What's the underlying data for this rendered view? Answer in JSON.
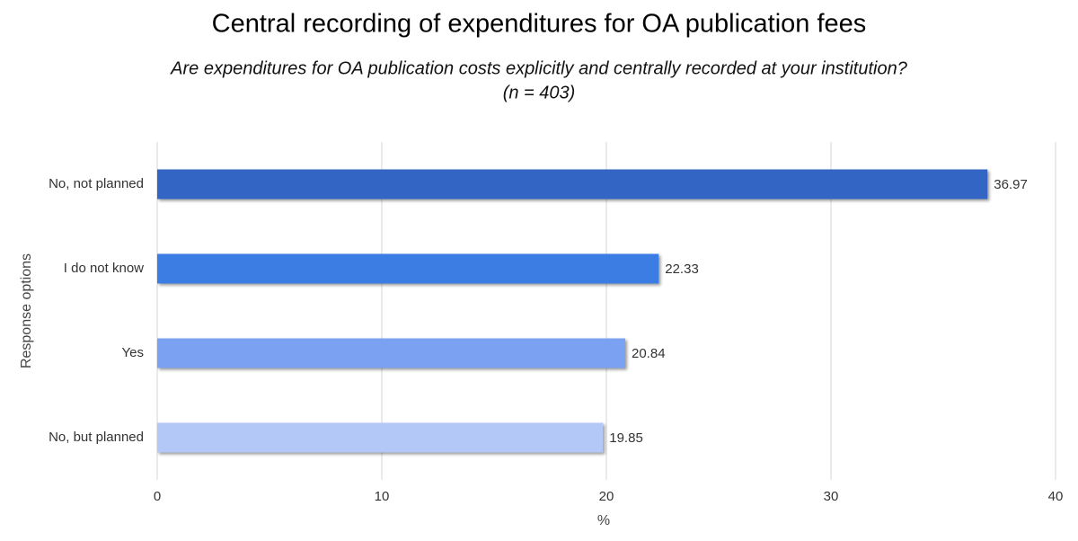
{
  "chart_data": {
    "type": "bar",
    "orientation": "horizontal",
    "title": "Central recording of expenditures for OA publication fees",
    "subtitle": [
      "Are expenditures for OA publication costs explicitly and centrally recorded at your institution?",
      "(n = 403)"
    ],
    "categories": [
      "No, not planned",
      "I do not know",
      "Yes",
      "No, but planned"
    ],
    "values": [
      36.97,
      22.33,
      20.84,
      19.85
    ],
    "colors": [
      "#3366c4",
      "#3b7de3",
      "#7aa1f2",
      "#b4c8f8"
    ],
    "xlabel": "%",
    "ylabel": "Response options",
    "xlim": [
      0,
      40
    ],
    "xticks": [
      0,
      10,
      20,
      30,
      40
    ],
    "grid": true
  }
}
